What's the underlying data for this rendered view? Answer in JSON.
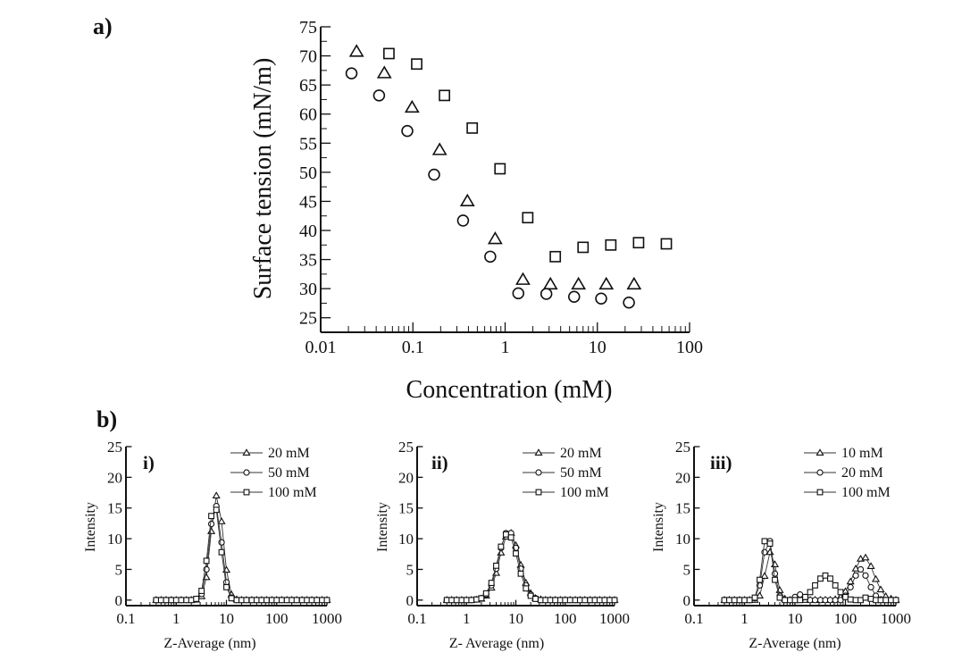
{
  "colors": {
    "marker": "#111111",
    "line": "#333333",
    "background": "#ffffff"
  },
  "chart_data": [
    {
      "panel_label": "a)",
      "type": "scatter",
      "xlabel": "Concentration (mM)",
      "ylabel": "Surface tension (mN/m)",
      "xscale": "log",
      "xlim": [
        0.01,
        100
      ],
      "ylim": [
        22.5,
        75
      ],
      "xticks": [
        "0.01",
        "0.1",
        "1",
        "10",
        "100"
      ],
      "yticks": [
        "25",
        "30",
        "35",
        "40",
        "45",
        "50",
        "55",
        "60",
        "65",
        "70",
        "75"
      ],
      "grid": false,
      "legend": "none",
      "series": [
        {
          "marker": "triangle",
          "x": [
            0.0245,
            0.049,
            0.098,
            0.195,
            0.39,
            0.78,
            1.56,
            3.1,
            6.25,
            12.5,
            25
          ],
          "y": [
            70.7,
            67.0,
            61.1,
            53.8,
            45.0,
            38.5,
            31.5,
            30.7,
            30.7,
            30.7,
            30.7
          ]
        },
        {
          "marker": "circle",
          "x": [
            0.0216,
            0.043,
            0.087,
            0.17,
            0.35,
            0.69,
            1.39,
            2.8,
            5.6,
            11,
            22
          ],
          "y": [
            67.0,
            63.2,
            57.1,
            49.6,
            41.7,
            35.5,
            29.2,
            29.1,
            28.6,
            28.3,
            27.6
          ]
        },
        {
          "marker": "square",
          "x": [
            0.055,
            0.11,
            0.22,
            0.44,
            0.88,
            1.76,
            3.5,
            7,
            14,
            28,
            56
          ],
          "y": [
            70.4,
            68.6,
            63.2,
            57.6,
            50.6,
            42.2,
            35.5,
            37.1,
            37.5,
            37.9,
            37.7
          ]
        }
      ]
    },
    {
      "section_label": "b)",
      "panel_label": "i)",
      "type": "line",
      "xlabel": "Z-Average (nm)",
      "ylabel": "Intensity",
      "xscale": "log",
      "xlim": [
        0.1,
        1000
      ],
      "ylim": [
        -0.9,
        25
      ],
      "xticks": [
        "0.1",
        "1",
        "10",
        "100",
        "1000"
      ],
      "yticks": [
        "0",
        "5",
        "10",
        "15",
        "20",
        "25"
      ],
      "legend": "top-right",
      "x": [
        0.4,
        0.5,
        0.63,
        0.8,
        1,
        1.26,
        1.6,
        2,
        2.5,
        3.2,
        4,
        5,
        6.3,
        8,
        10,
        12.6,
        16,
        20,
        25,
        32,
        40,
        50,
        63,
        80,
        100,
        126,
        160,
        200,
        250,
        320,
        400,
        500,
        630,
        800,
        1000
      ],
      "series": [
        {
          "name": "20 mM",
          "marker": "triangle",
          "values": [
            0,
            0,
            0,
            0,
            0,
            0,
            0,
            0,
            0.05,
            0.6,
            3.7,
            11.2,
            17,
            12.8,
            4.9,
            0.9,
            0.1,
            0,
            0,
            0,
            0,
            0,
            0,
            0,
            0,
            0,
            0,
            0,
            0,
            0,
            0,
            0,
            0,
            0,
            0
          ]
        },
        {
          "name": "50 mM",
          "marker": "circle",
          "values": [
            0,
            0,
            0,
            0,
            0,
            0,
            0,
            0,
            0.1,
            1.0,
            5.0,
            12.4,
            15.3,
            9.4,
            2.9,
            0.4,
            0,
            0,
            0,
            0,
            0,
            0,
            0,
            0,
            0,
            0,
            0,
            0,
            0,
            0,
            0,
            0,
            0,
            0,
            0
          ]
        },
        {
          "name": "100 mM",
          "marker": "square",
          "values": [
            0,
            0,
            0,
            0,
            0,
            0,
            0,
            0,
            0.2,
            1.5,
            6.4,
            13.7,
            14.7,
            7.8,
            2.1,
            0.3,
            0,
            0,
            0,
            0,
            0,
            0,
            0,
            0,
            0,
            0,
            0,
            0,
            0,
            0,
            0,
            0,
            0,
            0,
            0
          ]
        }
      ]
    },
    {
      "panel_label": "ii)",
      "type": "line",
      "xlabel": "Z- Average (nm)",
      "ylabel": "Intensity",
      "xscale": "log",
      "xlim": [
        0.1,
        1000
      ],
      "ylim": [
        -0.9,
        25
      ],
      "xticks": [
        "0.1",
        "1",
        "10",
        "100",
        "1000"
      ],
      "yticks": [
        "0",
        "5",
        "10",
        "15",
        "20",
        "25"
      ],
      "legend": "top-right",
      "x": [
        0.4,
        0.5,
        0.63,
        0.8,
        1,
        1.26,
        1.6,
        2,
        2.5,
        3.2,
        4,
        5,
        6.3,
        8,
        10,
        12.6,
        16,
        20,
        25,
        32,
        40,
        50,
        63,
        80,
        100,
        126,
        160,
        200,
        250,
        320,
        400,
        500,
        630,
        800,
        1000
      ],
      "series": [
        {
          "name": "20 mM",
          "marker": "triangle",
          "values": [
            0,
            0,
            0,
            0,
            0,
            0,
            0.04,
            0.2,
            0.7,
            2.0,
            4.4,
            7.7,
            10.3,
            10.9,
            8.9,
            5.7,
            2.8,
            1.1,
            0.3,
            0.1,
            0,
            0,
            0,
            0,
            0,
            0,
            0,
            0,
            0,
            0,
            0,
            0,
            0,
            0,
            0
          ]
        },
        {
          "name": "50 mM",
          "marker": "circle",
          "values": [
            0,
            0,
            0,
            0,
            0,
            0,
            0.1,
            0.3,
            0.9,
            2.4,
            5.1,
            8.5,
            10.9,
            10.9,
            8.5,
            5.1,
            2.4,
            0.9,
            0.3,
            0,
            0,
            0,
            0,
            0,
            0,
            0,
            0,
            0,
            0,
            0,
            0,
            0,
            0,
            0,
            0
          ]
        },
        {
          "name": "100 mM",
          "marker": "square",
          "values": [
            0,
            0,
            0,
            0,
            0,
            0,
            0.1,
            0.3,
            1.1,
            2.8,
            5.6,
            8.7,
            10.7,
            10.2,
            7.6,
            4.3,
            1.9,
            0.7,
            0.2,
            0,
            0,
            0,
            0,
            0,
            0,
            0,
            0,
            0,
            0,
            0,
            0,
            0,
            0,
            0,
            0
          ]
        }
      ]
    },
    {
      "panel_label": "iii)",
      "type": "line",
      "xlabel": "Z-Average (nm)",
      "ylabel": "Intensity",
      "xscale": "log",
      "xlim": [
        0.1,
        1000
      ],
      "ylim": [
        -0.9,
        25
      ],
      "xticks": [
        "0.1",
        "1",
        "10",
        "100",
        "1000"
      ],
      "yticks": [
        "0",
        "5",
        "10",
        "15",
        "20",
        "25"
      ],
      "legend": "top-right",
      "x": [
        0.4,
        0.5,
        0.63,
        0.8,
        1,
        1.26,
        1.6,
        2,
        2.5,
        3.2,
        4,
        5,
        6.3,
        8,
        10,
        12.6,
        16,
        20,
        25,
        32,
        40,
        50,
        63,
        80,
        100,
        126,
        160,
        200,
        250,
        320,
        400,
        500,
        630,
        800,
        1000
      ],
      "series": [
        {
          "name": "10 mM",
          "marker": "triangle",
          "values": [
            0,
            0,
            0,
            0,
            0,
            0,
            0,
            0.7,
            3.9,
            7.8,
            5.8,
            1.6,
            0.2,
            0,
            0,
            0,
            0,
            0,
            0,
            0,
            0,
            0,
            0.1,
            0.5,
            1.4,
            3.0,
            5.1,
            6.7,
            6.9,
            5.5,
            3.4,
            1.7,
            0.6,
            0.2,
            0
          ]
        },
        {
          "name": "20 mM",
          "marker": "circle",
          "values": [
            0,
            0,
            0,
            0,
            0,
            0,
            0.3,
            2.4,
            7.8,
            9.6,
            4.3,
            0.7,
            0,
            0,
            0.5,
            0.9,
            0.5,
            0,
            0,
            0,
            0,
            0,
            0,
            0,
            0.7,
            2.1,
            4.0,
            5.0,
            4.0,
            2.1,
            0.7,
            0.1,
            0,
            0,
            0
          ]
        },
        {
          "name": "100 mM",
          "marker": "square",
          "values": [
            0,
            0,
            0,
            0,
            0,
            0,
            0.4,
            3.3,
            9.6,
            9.2,
            3.3,
            0.4,
            0,
            0,
            0,
            0,
            0.5,
            1.3,
            2.4,
            3.5,
            4.0,
            3.5,
            2.4,
            1.3,
            0.5,
            0.1,
            0,
            0,
            0.4,
            0.2,
            0,
            0,
            0,
            0,
            0
          ]
        }
      ]
    }
  ]
}
